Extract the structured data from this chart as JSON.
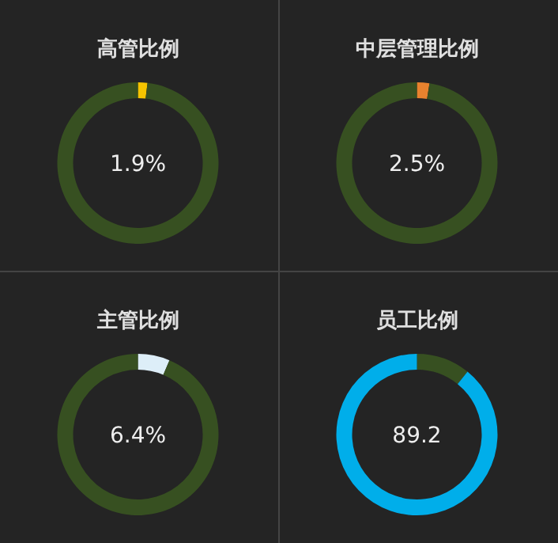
{
  "chart_data": [
    {
      "type": "donut",
      "title": "高管比例",
      "categories": [
        null,
        null
      ],
      "values": [
        1.9,
        98.1
      ],
      "colors": [
        "#f5c400",
        "#375021"
      ],
      "annotations": [
        "1.9%"
      ]
    },
    {
      "type": "donut",
      "title": "中层管理比例",
      "categories": [
        null,
        null
      ],
      "values": [
        2.5,
        97.5
      ],
      "colors": [
        "#e8822e",
        "#375021"
      ],
      "annotations": [
        "2.5%"
      ]
    },
    {
      "type": "donut",
      "title": "主管比例",
      "categories": [
        null,
        null
      ],
      "values": [
        6.4,
        93.6
      ],
      "colors": [
        "#ddeef8",
        "#375021"
      ],
      "annotations": [
        "6.4%"
      ]
    },
    {
      "type": "donut",
      "title": "员工比例",
      "categories": [
        null,
        null
      ],
      "values": [
        10.8,
        89.2
      ],
      "colors": [
        "#375021",
        "#00aeea"
      ],
      "annotations": [
        "89.2"
      ]
    }
  ]
}
